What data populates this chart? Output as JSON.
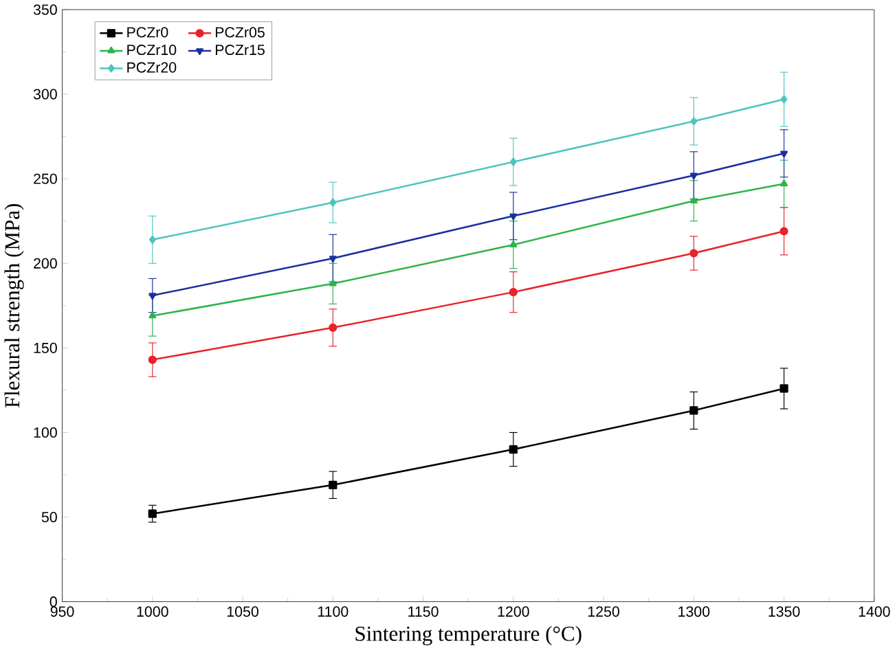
{
  "chart_data": {
    "type": "line",
    "xlabel": "Sintering temperature (°C)",
    "ylabel": "Flexural strength (MPa)",
    "x": [
      1000,
      1100,
      1200,
      1300,
      1350
    ],
    "series": [
      {
        "name": "PCZr0",
        "color": "#000000",
        "marker": "square",
        "values": [
          52,
          69,
          90,
          113,
          126
        ],
        "errors": [
          5,
          8,
          10,
          11,
          12
        ]
      },
      {
        "name": "PCZr05",
        "color": "#e8232a",
        "marker": "circle",
        "values": [
          143,
          162,
          183,
          206,
          219
        ],
        "errors": [
          10,
          11,
          12,
          10,
          14
        ]
      },
      {
        "name": "PCZr10",
        "color": "#2eb34a",
        "marker": "triangle",
        "values": [
          169,
          188,
          211,
          237,
          247
        ],
        "errors": [
          12,
          12,
          14,
          12,
          14
        ]
      },
      {
        "name": "PCZr15",
        "color": "#1b2f9e",
        "marker": "triangle down",
        "values": [
          181,
          203,
          228,
          252,
          265
        ],
        "errors": [
          10,
          14,
          14,
          14,
          14
        ]
      },
      {
        "name": "PCZr20",
        "color": "#4fc4c0",
        "marker": "diamond",
        "values": [
          214,
          236,
          260,
          284,
          297
        ],
        "errors": [
          14,
          12,
          14,
          14,
          16
        ]
      }
    ],
    "xlim": [
      950,
      1400
    ],
    "xticks": [
      950,
      1000,
      1050,
      1100,
      1150,
      1200,
      1250,
      1300,
      1350,
      1400
    ],
    "ylim": [
      0,
      350
    ],
    "yticks": [
      0,
      50,
      100,
      150,
      200,
      250,
      300,
      350
    ],
    "legend": "top left",
    "grid": false,
    "line_style": "solid"
  }
}
